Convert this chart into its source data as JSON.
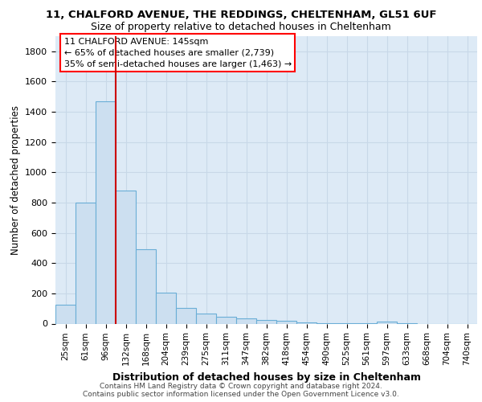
{
  "title_line1": "11, CHALFORD AVENUE, THE REDDINGS, CHELTENHAM, GL51 6UF",
  "title_line2": "Size of property relative to detached houses in Cheltenham",
  "xlabel": "Distribution of detached houses by size in Cheltenham",
  "ylabel": "Number of detached properties",
  "footer_line1": "Contains HM Land Registry data © Crown copyright and database right 2024.",
  "footer_line2": "Contains public sector information licensed under the Open Government Licence v3.0.",
  "bar_labels": [
    "25sqm",
    "61sqm",
    "96sqm",
    "132sqm",
    "168sqm",
    "204sqm",
    "239sqm",
    "275sqm",
    "311sqm",
    "347sqm",
    "382sqm",
    "418sqm",
    "454sqm",
    "490sqm",
    "525sqm",
    "561sqm",
    "597sqm",
    "633sqm",
    "668sqm",
    "704sqm",
    "740sqm"
  ],
  "bar_values": [
    125,
    800,
    1470,
    880,
    490,
    205,
    105,
    65,
    45,
    33,
    25,
    18,
    8,
    2,
    1,
    1,
    12,
    1,
    0,
    0,
    0
  ],
  "bar_color": "#ccdff0",
  "bar_edge_color": "#6aaed6",
  "ylim": [
    0,
    1900
  ],
  "yticks": [
    0,
    200,
    400,
    600,
    800,
    1000,
    1200,
    1400,
    1600,
    1800
  ],
  "property_line_x": 3.0,
  "property_line_color": "#cc0000",
  "annotation_text_line1": "11 CHALFORD AVENUE: 145sqm",
  "annotation_text_line2": "← 65% of detached houses are smaller (2,739)",
  "annotation_text_line3": "35% of semi-detached houses are larger (1,463) →",
  "grid_color": "#c8d8e8",
  "background_color": "#ddeaf6"
}
